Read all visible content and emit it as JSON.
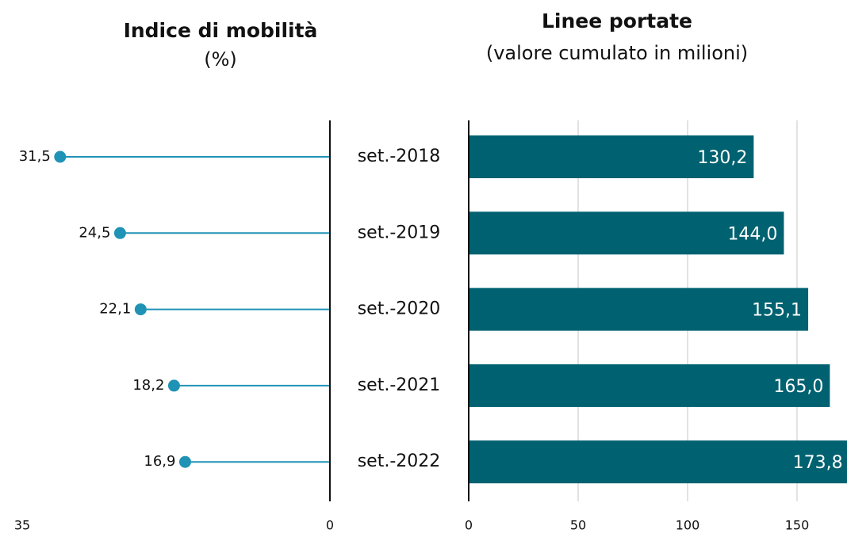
{
  "chart_data": [
    {
      "type": "lollipop",
      "title": "Indice di mobilità",
      "subtitle": "(%)",
      "values": [
        31.5,
        24.5,
        22.1,
        18.2,
        16.9
      ],
      "value_labels": [
        "31,5",
        "24,5",
        "22,1",
        "18,2",
        "16,9"
      ],
      "color": "#1f93b5",
      "xlim": [
        0,
        35
      ],
      "xticks": [
        35,
        0
      ],
      "reversed": true
    },
    {
      "type": "bar",
      "title": "Linee portate",
      "subtitle": "(valore cumulato in milioni)",
      "categories": [
        "set.-2018",
        "set.-2019",
        "set.-2020",
        "set.-2021",
        "set.-2022"
      ],
      "values": [
        130.2,
        144.0,
        155.1,
        165.0,
        173.8
      ],
      "value_labels": [
        "130,2",
        "144,0",
        "155,1",
        "165,0",
        "173,8"
      ],
      "color": "#006170",
      "xlim": [
        0,
        172
      ],
      "xticks": [
        0,
        50,
        100,
        150
      ],
      "grid": true
    }
  ]
}
